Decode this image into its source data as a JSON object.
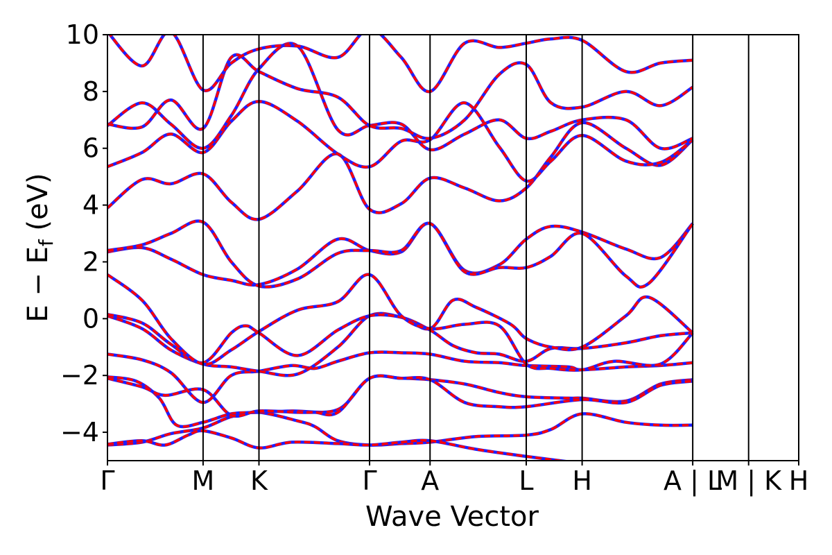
{
  "chart_data": {
    "type": "line",
    "title": "",
    "xlabel": "Wave Vector",
    "ylabel": "E − E",
    "ylabel_subscript": "f",
    "ylabel_unit": "(eV)",
    "xlim": [
      0,
      1200
    ],
    "ylim": [
      -5,
      10
    ],
    "yticks": [
      -4,
      -2,
      0,
      2,
      4,
      6,
      8,
      10
    ],
    "ytick_labels": [
      "−4",
      "−2",
      "0",
      "2",
      "4",
      "6",
      "8",
      "10"
    ],
    "high_symmetry_points": [
      {
        "label": "Γ",
        "k": 0
      },
      {
        "label": "M",
        "k": 166
      },
      {
        "label": "K",
        "k": 263
      },
      {
        "label": "Γ",
        "k": 455
      },
      {
        "label": "A",
        "k": 560
      },
      {
        "label": "L",
        "k": 727
      },
      {
        "label": "H",
        "k": 824
      },
      {
        "label": "A | L",
        "k": 1016
      },
      {
        "label": "M | K",
        "k": 1113
      },
      {
        "label": "H",
        "k": 1200
      }
    ],
    "colors": {
      "dft": "#ff0000",
      "wannier": "#1f1fff",
      "axis": "#000000"
    },
    "series": [
      {
        "points": [
          [
            0,
            -4.45
          ],
          [
            60,
            -4.35
          ],
          [
            110,
            -4.05
          ],
          [
            166,
            -3.85
          ],
          [
            215,
            -3.45
          ],
          [
            263,
            -3.3
          ],
          [
            330,
            -3.6
          ],
          [
            360,
            -3.8
          ],
          [
            400,
            -4.3
          ],
          [
            455,
            -4.45
          ],
          [
            510,
            -4.4
          ],
          [
            560,
            -4.35
          ],
          [
            640,
            -4.15
          ],
          [
            727,
            -4.1
          ],
          [
            770,
            -3.9
          ],
          [
            824,
            -3.35
          ],
          [
            900,
            -3.65
          ],
          [
            960,
            -3.75
          ],
          [
            1016,
            -3.75
          ]
        ]
      },
      {
        "points": [
          [
            0,
            -4.42
          ],
          [
            60,
            -4.3
          ],
          [
            100,
            -4.45
          ],
          [
            140,
            -4.1
          ],
          [
            166,
            -3.95
          ],
          [
            215,
            -4.2
          ],
          [
            263,
            -4.55
          ],
          [
            320,
            -4.35
          ],
          [
            400,
            -4.4
          ],
          [
            455,
            -4.45
          ],
          [
            510,
            -4.35
          ],
          [
            560,
            -4.3
          ],
          [
            640,
            -4.6
          ],
          [
            727,
            -4.85
          ],
          [
            824,
            -5.1
          ]
        ]
      },
      {
        "points": [
          [
            0,
            -2.05
          ],
          [
            50,
            -2.2
          ],
          [
            90,
            -2.8
          ],
          [
            120,
            -3.75
          ],
          [
            166,
            -3.65
          ],
          [
            215,
            -3.35
          ],
          [
            263,
            -3.3
          ],
          [
            320,
            -3.25
          ],
          [
            400,
            -3.2
          ],
          [
            455,
            -2.1
          ],
          [
            510,
            -2.1
          ],
          [
            560,
            -2.15
          ],
          [
            620,
            -2.3
          ],
          [
            680,
            -2.6
          ],
          [
            727,
            -2.75
          ],
          [
            800,
            -2.8
          ],
          [
            824,
            -2.8
          ],
          [
            900,
            -2.9
          ],
          [
            960,
            -2.3
          ],
          [
            1016,
            -2.15
          ]
        ]
      },
      {
        "points": [
          [
            0,
            -2.1
          ],
          [
            60,
            -2.4
          ],
          [
            100,
            -2.7
          ],
          [
            166,
            -2.5
          ],
          [
            215,
            -3.4
          ],
          [
            263,
            -3.25
          ],
          [
            330,
            -3.3
          ],
          [
            360,
            -3.3
          ],
          [
            400,
            -3.3
          ],
          [
            455,
            -2.1
          ],
          [
            510,
            -2.1
          ],
          [
            560,
            -2.15
          ],
          [
            620,
            -2.95
          ],
          [
            680,
            -3.1
          ],
          [
            727,
            -3.1
          ],
          [
            824,
            -2.85
          ],
          [
            900,
            -2.95
          ],
          [
            960,
            -2.35
          ],
          [
            1016,
            -2.2
          ]
        ]
      },
      {
        "points": [
          [
            0,
            -1.25
          ],
          [
            60,
            -1.45
          ],
          [
            110,
            -1.9
          ],
          [
            166,
            -2.95
          ],
          [
            215,
            -2.0
          ],
          [
            263,
            -1.85
          ],
          [
            320,
            -1.65
          ],
          [
            360,
            -1.75
          ],
          [
            400,
            -1.5
          ],
          [
            455,
            -1.2
          ],
          [
            510,
            -1.2
          ],
          [
            560,
            -1.25
          ],
          [
            620,
            -1.5
          ],
          [
            680,
            -1.55
          ],
          [
            727,
            -1.65
          ],
          [
            800,
            -1.7
          ],
          [
            824,
            -1.8
          ],
          [
            900,
            -1.7
          ],
          [
            960,
            -1.65
          ],
          [
            1016,
            -1.55
          ]
        ]
      },
      {
        "points": [
          [
            0,
            0.1
          ],
          [
            60,
            -0.35
          ],
          [
            110,
            -1.1
          ],
          [
            166,
            -1.6
          ],
          [
            215,
            -1.7
          ],
          [
            263,
            -1.85
          ],
          [
            330,
            -1.95
          ],
          [
            400,
            -1.0
          ],
          [
            455,
            0.1
          ],
          [
            510,
            0.05
          ],
          [
            560,
            -0.4
          ],
          [
            600,
            -0.95
          ],
          [
            640,
            -1.2
          ],
          [
            680,
            -1.25
          ],
          [
            727,
            -1.5
          ],
          [
            770,
            -1.05
          ],
          [
            824,
            -1.05
          ],
          [
            900,
            -0.85
          ],
          [
            960,
            -0.6
          ],
          [
            1016,
            -0.5
          ]
        ]
      },
      {
        "points": [
          [
            0,
            0.15
          ],
          [
            60,
            -0.15
          ],
          [
            110,
            -0.9
          ],
          [
            166,
            -1.55
          ],
          [
            215,
            -0.5
          ],
          [
            240,
            -0.25
          ],
          [
            263,
            -0.5
          ],
          [
            330,
            -1.3
          ],
          [
            400,
            -0.4
          ],
          [
            455,
            0.1
          ],
          [
            510,
            0.05
          ],
          [
            560,
            -0.35
          ],
          [
            600,
            0.65
          ],
          [
            640,
            0.4
          ],
          [
            700,
            -0.2
          ],
          [
            727,
            -0.7
          ],
          [
            770,
            -1.0
          ],
          [
            824,
            -1.0
          ],
          [
            900,
            0.1
          ],
          [
            940,
            0.75
          ],
          [
            1016,
            -0.5
          ]
        ]
      },
      {
        "points": [
          [
            0,
            1.55
          ],
          [
            60,
            0.65
          ],
          [
            110,
            -0.7
          ],
          [
            166,
            -1.6
          ],
          [
            215,
            -1.1
          ],
          [
            263,
            -0.45
          ],
          [
            330,
            0.3
          ],
          [
            400,
            0.6
          ],
          [
            455,
            1.55
          ],
          [
            510,
            0.1
          ],
          [
            560,
            -0.35
          ],
          [
            620,
            -0.2
          ],
          [
            680,
            -0.25
          ],
          [
            727,
            -1.6
          ],
          [
            770,
            -1.75
          ],
          [
            824,
            -1.8
          ],
          [
            880,
            -1.5
          ],
          [
            960,
            -1.6
          ],
          [
            1016,
            -0.5
          ]
        ]
      },
      {
        "points": [
          [
            0,
            2.35
          ],
          [
            60,
            2.5
          ],
          [
            110,
            2.1
          ],
          [
            166,
            1.55
          ],
          [
            215,
            1.35
          ],
          [
            263,
            1.2
          ],
          [
            330,
            1.75
          ],
          [
            400,
            2.8
          ],
          [
            455,
            2.4
          ],
          [
            510,
            2.35
          ],
          [
            560,
            3.35
          ],
          [
            620,
            1.7
          ],
          [
            680,
            1.9
          ],
          [
            727,
            2.8
          ],
          [
            770,
            3.25
          ],
          [
            824,
            3.05
          ],
          [
            900,
            2.45
          ],
          [
            960,
            2.15
          ],
          [
            1016,
            3.35
          ]
        ]
      },
      {
        "points": [
          [
            0,
            2.4
          ],
          [
            60,
            2.6
          ],
          [
            110,
            3.0
          ],
          [
            166,
            3.4
          ],
          [
            215,
            2.0
          ],
          [
            263,
            1.15
          ],
          [
            330,
            1.4
          ],
          [
            400,
            2.3
          ],
          [
            455,
            2.4
          ],
          [
            510,
            2.4
          ],
          [
            560,
            3.35
          ],
          [
            620,
            1.65
          ],
          [
            680,
            1.8
          ],
          [
            727,
            1.8
          ],
          [
            770,
            2.2
          ],
          [
            824,
            3.0
          ],
          [
            900,
            1.5
          ],
          [
            940,
            1.25
          ],
          [
            1016,
            3.35
          ]
        ]
      },
      {
        "points": [
          [
            0,
            3.9
          ],
          [
            60,
            4.9
          ],
          [
            110,
            4.75
          ],
          [
            166,
            5.1
          ],
          [
            215,
            4.1
          ],
          [
            263,
            3.5
          ],
          [
            330,
            4.5
          ],
          [
            400,
            5.8
          ],
          [
            455,
            3.85
          ],
          [
            510,
            4.05
          ],
          [
            560,
            4.95
          ],
          [
            620,
            4.6
          ],
          [
            680,
            4.15
          ],
          [
            727,
            4.6
          ],
          [
            770,
            5.7
          ],
          [
            824,
            6.9
          ],
          [
            900,
            6.0
          ],
          [
            960,
            5.4
          ],
          [
            1016,
            6.3
          ]
        ]
      },
      {
        "points": [
          [
            0,
            5.35
          ],
          [
            60,
            5.85
          ],
          [
            110,
            6.5
          ],
          [
            166,
            5.85
          ],
          [
            215,
            6.95
          ],
          [
            263,
            7.65
          ],
          [
            330,
            6.95
          ],
          [
            400,
            5.8
          ],
          [
            455,
            5.35
          ],
          [
            510,
            6.25
          ],
          [
            560,
            6.3
          ],
          [
            620,
            7.6
          ],
          [
            680,
            6.05
          ],
          [
            727,
            4.85
          ],
          [
            770,
            5.55
          ],
          [
            824,
            6.45
          ],
          [
            900,
            5.55
          ],
          [
            960,
            5.5
          ],
          [
            1016,
            6.3
          ]
        ]
      },
      {
        "points": [
          [
            0,
            6.8
          ],
          [
            60,
            7.6
          ],
          [
            110,
            6.85
          ],
          [
            166,
            6.0
          ],
          [
            215,
            7.15
          ],
          [
            263,
            8.8
          ],
          [
            330,
            9.6
          ],
          [
            400,
            6.65
          ],
          [
            455,
            6.8
          ],
          [
            510,
            6.85
          ],
          [
            560,
            5.95
          ],
          [
            620,
            6.5
          ],
          [
            680,
            7.0
          ],
          [
            727,
            6.35
          ],
          [
            770,
            6.6
          ],
          [
            824,
            7.0
          ],
          [
            900,
            7.0
          ],
          [
            960,
            6.0
          ],
          [
            1016,
            6.35
          ]
        ]
      },
      {
        "points": [
          [
            0,
            6.85
          ],
          [
            60,
            6.75
          ],
          [
            110,
            7.7
          ],
          [
            166,
            6.7
          ],
          [
            215,
            9.2
          ],
          [
            263,
            8.7
          ],
          [
            330,
            8.1
          ],
          [
            400,
            7.8
          ],
          [
            455,
            6.8
          ],
          [
            510,
            6.7
          ],
          [
            560,
            6.35
          ],
          [
            620,
            7.0
          ],
          [
            680,
            8.6
          ],
          [
            727,
            8.95
          ],
          [
            770,
            7.6
          ],
          [
            824,
            7.45
          ],
          [
            900,
            8.0
          ],
          [
            960,
            7.5
          ],
          [
            1016,
            8.15
          ]
        ]
      },
      {
        "points": [
          [
            0,
            10.1
          ],
          [
            60,
            8.9
          ],
          [
            110,
            10.1
          ],
          [
            166,
            8.05
          ],
          [
            215,
            9.0
          ],
          [
            263,
            9.5
          ],
          [
            330,
            9.6
          ],
          [
            400,
            9.2
          ],
          [
            455,
            10.2
          ],
          [
            510,
            9.2
          ],
          [
            560,
            8.0
          ],
          [
            620,
            9.7
          ],
          [
            680,
            9.55
          ],
          [
            727,
            9.7
          ],
          [
            770,
            9.85
          ],
          [
            824,
            9.8
          ],
          [
            900,
            8.7
          ],
          [
            960,
            9.0
          ],
          [
            1016,
            9.1
          ]
        ]
      }
    ]
  }
}
